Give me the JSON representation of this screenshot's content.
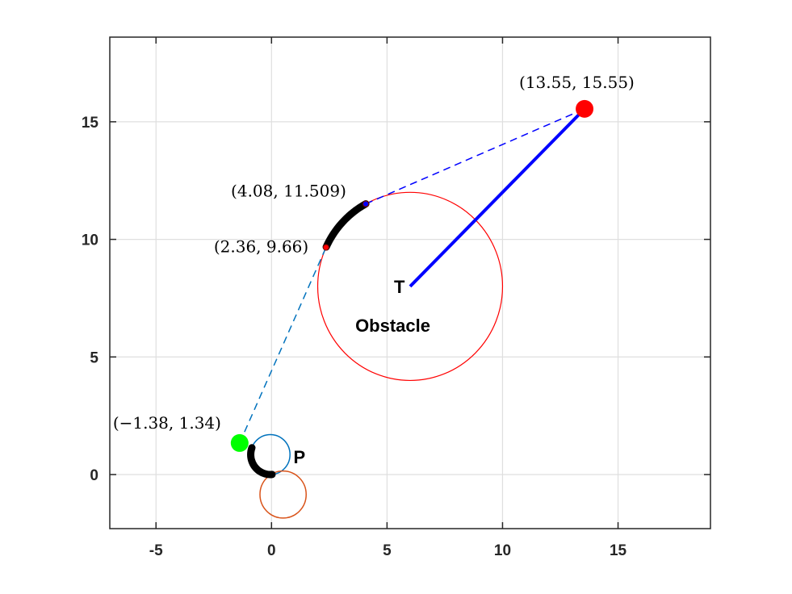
{
  "chart_data": {
    "type": "line",
    "title": "",
    "xlabel": "",
    "ylabel": "",
    "xlim": [
      -7,
      19
    ],
    "ylim": [
      -2.3,
      18.6
    ],
    "xticks": [
      -5,
      0,
      5,
      10,
      15
    ],
    "yticks": [
      0,
      5,
      10,
      15
    ],
    "xtick_labels": [
      "-5",
      "0",
      "5",
      "10",
      "15"
    ],
    "ytick_labels": [
      "0",
      "5",
      "10",
      "15"
    ],
    "grid": true,
    "box": true,
    "colors": {
      "axis": "#262626",
      "grid": "#dfdfdf",
      "target": "#ff0000",
      "start": "#00ff00",
      "path": "#000000",
      "blue_line": "#0000ff",
      "dashed_tangent": "#0072bd",
      "small_circle_blue": "#0072bd",
      "small_circle_orange": "#d95319",
      "obstacle": "#ff0000"
    },
    "obstacle": {
      "center": [
        6,
        8
      ],
      "radius": 4
    },
    "circles_small": [
      {
        "name": "",
        "center": [
          -0.05,
          0.85
        ],
        "radius": 0.85,
        "color": "#0072bd"
      },
      {
        "name": "",
        "center": [
          0.5,
          -0.85
        ],
        "radius": 1.0,
        "color": "#d95319"
      }
    ],
    "target_line": {
      "from": [
        6,
        8
      ],
      "to": [
        13.55,
        15.55
      ]
    },
    "tangent_lines": [
      {
        "from": [
          4.08,
          11.509
        ],
        "to": [
          13.55,
          15.55
        ],
        "color": "#0000ff"
      },
      {
        "from": [
          -1.38,
          1.34
        ],
        "to": [
          2.36,
          9.66
        ],
        "color": "#0072bd"
      }
    ],
    "arc_paths": [
      {
        "center": [
          6,
          8
        ],
        "radius": 4,
        "from_deg": 118.7,
        "to_deg": 155.2
      },
      {
        "center": [
          -0.05,
          0.85
        ],
        "radius": 0.85,
        "from_deg": 160,
        "to_deg": 275
      }
    ],
    "points": [
      {
        "x": 13.55,
        "y": 15.55,
        "label": "(13.55, 15.55)",
        "color": "#ff0000",
        "size": "large"
      },
      {
        "x": 4.08,
        "y": 11.509,
        "label": "(4.08, 11.509)",
        "color": "#0000ff",
        "size": "small"
      },
      {
        "x": 2.36,
        "y": 9.66,
        "label": "(2.36, 9.66)",
        "color": "#ff0000",
        "size": "small"
      },
      {
        "x": -1.38,
        "y": 1.34,
        "label": "(−1.38, 1.34)",
        "color": "#00ff00",
        "size": "large"
      }
    ],
    "annotations": [
      {
        "text": "T",
        "x": 5.3,
        "y": 8.0
      },
      {
        "text": "Obstacle",
        "x": 5.25,
        "y": 6.35
      },
      {
        "text": "P",
        "x": 0.95,
        "y": 0.75
      }
    ]
  }
}
